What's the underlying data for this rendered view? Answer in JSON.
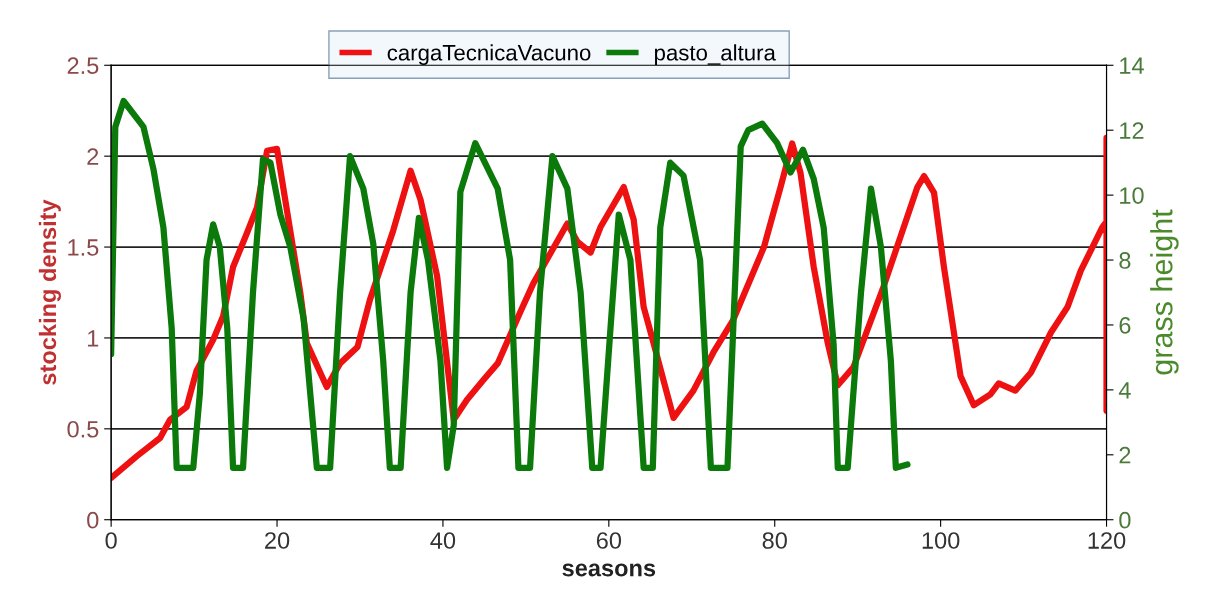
{
  "chart_data": {
    "type": "line",
    "xlabel": "seasons",
    "ylabel": "stocking density",
    "y2label": "grass height",
    "xlim": [
      0,
      120
    ],
    "xticks": [
      0,
      20,
      40,
      60,
      80,
      100,
      120
    ],
    "ylim": [
      0,
      2.5
    ],
    "yticks": [
      0,
      0.5,
      1,
      1.5,
      2,
      2.5
    ],
    "y2lim": [
      0,
      14
    ],
    "y2ticks": [
      0,
      2,
      4,
      6,
      8,
      10,
      12,
      14
    ],
    "grid": "y",
    "legend": "top",
    "line_style": "solid",
    "marker": "none",
    "series": [
      {
        "name": "cargaTecnicaVacuno",
        "color": "#ee1111",
        "x": [
          0,
          3.1,
          5.9,
          7.1,
          9.1,
          10.3,
          12.3,
          13.5,
          14.7,
          16.4,
          17.6,
          18.8,
          20.0,
          21.2,
          22.8,
          23.6,
          26.0,
          27.6,
          29.7,
          31.2,
          34.0,
          36.1,
          37.3,
          39.3,
          41.3,
          42.9,
          44.9,
          46.6,
          49.3,
          50.9,
          55.0,
          56.2,
          57.8,
          59.0,
          61.8,
          63.0,
          64.2,
          65.4,
          67.8,
          70.2,
          72.6,
          75.0,
          78.7,
          80.7,
          82.1,
          83.1,
          84.7,
          86.4,
          87.6,
          89.5,
          93.1,
          97.2,
          98.0,
          99.2,
          100.4,
          102.4,
          104.0,
          106.0,
          107.0,
          109.0,
          110.9,
          113.3,
          115.3,
          116.9,
          119.5,
          120,
          120,
          120
        ],
        "values": [
          0.23,
          0.35,
          0.45,
          0.55,
          0.62,
          0.82,
          0.99,
          1.12,
          1.39,
          1.58,
          1.72,
          2.03,
          2.04,
          1.7,
          1.25,
          0.97,
          0.73,
          0.86,
          0.95,
          1.21,
          1.59,
          1.92,
          1.76,
          1.34,
          0.55,
          0.66,
          0.77,
          0.86,
          1.14,
          1.3,
          1.63,
          1.53,
          1.47,
          1.61,
          1.83,
          1.65,
          1.17,
          0.97,
          0.56,
          0.71,
          0.92,
          1.1,
          1.5,
          1.83,
          2.07,
          1.91,
          1.39,
          0.97,
          0.74,
          0.84,
          1.28,
          1.83,
          1.89,
          1.8,
          1.39,
          0.79,
          0.63,
          0.69,
          0.75,
          0.71,
          0.81,
          1.03,
          1.17,
          1.37,
          1.61,
          1.64,
          2.1,
          0.6
        ]
      },
      {
        "name": "pasto_altura",
        "color": "#0b7a0b",
        "axis": "y2",
        "x": [
          0,
          0.5,
          1.5,
          3.9,
          5.1,
          6.3,
          7.3,
          7.9,
          9.9,
          10.7,
          11.5,
          12.3,
          13.1,
          14.0,
          14.7,
          15.9,
          17.1,
          18.3,
          19.2,
          20.4,
          21.6,
          23.2,
          24.8,
          26.4,
          27.6,
          28.8,
          30.4,
          31.6,
          32.8,
          33.6,
          34.9,
          36.1,
          37.1,
          38.2,
          39.7,
          40.5,
          41.3,
          42.1,
          43.9,
          46.6,
          48.1,
          49.1,
          50.5,
          51.7,
          53.2,
          55.0,
          56.6,
          58.0,
          59.0,
          60.2,
          61.2,
          62.6,
          64.2,
          65.3,
          66.2,
          67.4,
          69.0,
          71.0,
          72.3,
          74.3,
          75.0,
          75.9,
          76.8,
          78.5,
          80.3,
          81.9,
          83.4,
          84.7,
          85.9,
          87.1,
          87.6,
          88.8,
          90.4,
          91.6,
          92.8,
          94.0,
          94.6,
          96.0
        ],
        "values": [
          5.1,
          12.1,
          12.9,
          12.1,
          10.8,
          9.0,
          5.9,
          1.6,
          1.6,
          3.9,
          8.0,
          9.1,
          8.4,
          5.9,
          1.6,
          1.6,
          7.0,
          11.1,
          11.0,
          9.4,
          8.4,
          6.2,
          1.6,
          1.6,
          7.0,
          11.2,
          10.2,
          8.5,
          4.9,
          1.6,
          1.6,
          7.0,
          9.3,
          8.0,
          4.9,
          1.6,
          2.9,
          10.1,
          11.6,
          10.2,
          8.0,
          1.6,
          1.6,
          7.0,
          11.2,
          10.2,
          7.0,
          1.6,
          1.6,
          5.9,
          9.4,
          8.0,
          1.6,
          1.6,
          9.0,
          11.0,
          10.6,
          8.0,
          1.6,
          1.6,
          5.9,
          11.5,
          12.0,
          12.2,
          11.6,
          10.7,
          11.4,
          10.5,
          9.0,
          5.4,
          1.6,
          1.6,
          7.0,
          10.2,
          8.4,
          4.9,
          1.6,
          1.7
        ]
      }
    ]
  }
}
